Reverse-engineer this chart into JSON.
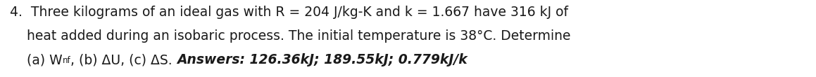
{
  "line1": "4.  Three kilograms of an ideal gas with R = 204 J/kg-K and k = 1.667 have 316 kJ of",
  "line2": "    heat added during an isobaric process. The initial temperature is 38°C. Determine",
  "line3_part1": "    (a) W",
  "line3_sub": "nf",
  "line3_part2": ", (b) ΔU, (c) ΔS. ",
  "line3_bold": "Answers: 126.36kJ; 189.55kJ; 0.779kJ/k",
  "bg_color": "#ffffff",
  "text_color": "#1a1a1a",
  "fontsize": 13.5,
  "fontsize_sub": 8.5,
  "fig_width": 11.59,
  "fig_height": 1.1,
  "dpi": 100
}
